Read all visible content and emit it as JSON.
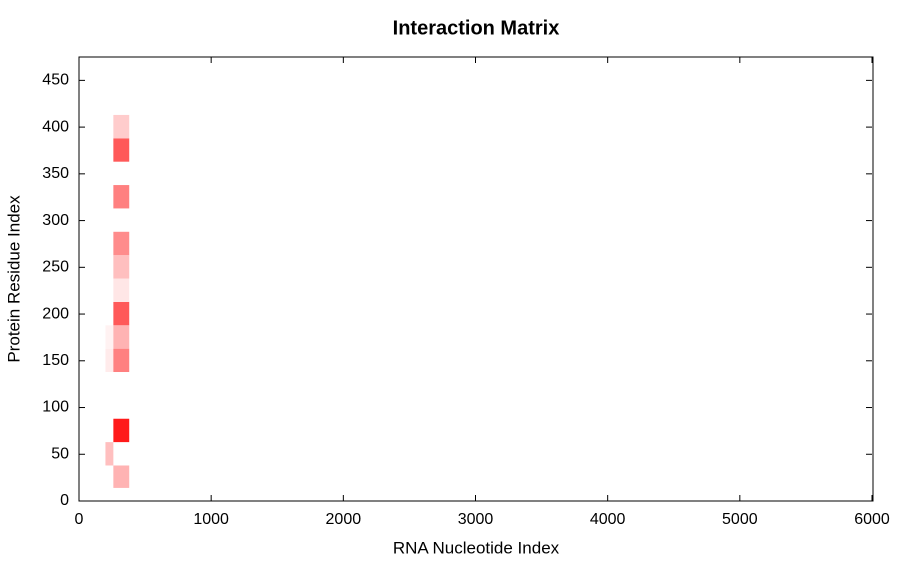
{
  "chart_data": {
    "type": "heatmap",
    "title": "Interaction Matrix",
    "x_label": "RNA Nucleotide Index",
    "y_label": "Protein Residue Index",
    "x_edges": [
      200,
      260,
      380
    ],
    "y_edges": [
      14,
      38,
      63,
      88,
      113,
      138,
      163,
      188,
      213,
      238,
      263,
      288,
      313,
      338,
      363,
      388,
      413
    ],
    "values": [
      [
        null,
        0.3
      ],
      [
        0.25,
        null
      ],
      [
        null,
        0.9
      ],
      [
        null,
        null
      ],
      [
        null,
        null
      ],
      [
        0.08,
        0.5
      ],
      [
        0.05,
        0.3
      ],
      [
        null,
        0.65
      ],
      [
        null,
        0.1
      ],
      [
        null,
        0.25
      ],
      [
        null,
        0.45
      ],
      [
        null,
        null
      ],
      [
        null,
        0.5
      ],
      [
        null,
        null
      ],
      [
        null,
        0.65
      ],
      [
        null,
        0.2
      ]
    ],
    "colormap": [
      "#ffffff",
      "#ff0000"
    ],
    "zlim": [
      0,
      1
    ],
    "xlim": [
      0,
      6000
    ],
    "ylim": [
      0,
      475
    ],
    "xticks": [
      0,
      1000,
      2000,
      3000,
      4000,
      5000,
      6000
    ],
    "yticks": [
      0,
      50,
      100,
      150,
      200,
      250,
      300,
      350,
      400,
      450
    ]
  }
}
